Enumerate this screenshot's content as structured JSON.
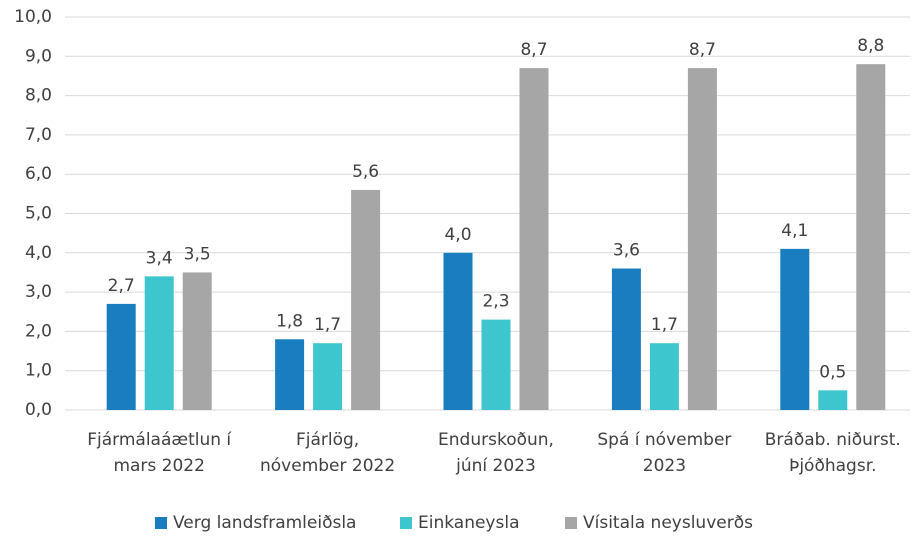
{
  "chart_data": {
    "type": "bar",
    "categories": [
      "Fjármálaáætlun í\nmars 2022",
      "Fjárlög,\nnóvember 2022",
      "Endurskoðun,\njúní 2023",
      "Spá í nóvember\n2023",
      "Bráðab. niðurst.\nÞjóðhagsr."
    ],
    "series": [
      {
        "name": "Verg landsframleiðsla",
        "color": "#1a7dc0",
        "values": [
          2.7,
          1.8,
          4.0,
          3.6,
          4.1
        ],
        "value_labels": [
          "2,7",
          "1,8",
          "4,0",
          "3,6",
          "4,1"
        ]
      },
      {
        "name": "Einkaneysla",
        "color": "#3ec6ce",
        "values": [
          3.4,
          1.7,
          2.3,
          1.7,
          0.5
        ],
        "value_labels": [
          "3,4",
          "1,7",
          "2,3",
          "1,7",
          "0,5"
        ]
      },
      {
        "name": "Vísitala neysluverðs",
        "color": "#a6a6a6",
        "values": [
          3.5,
          5.6,
          8.7,
          8.7,
          8.8
        ],
        "value_labels": [
          "3,5",
          "5,6",
          "8,7",
          "8,7",
          "8,8"
        ]
      }
    ],
    "ylim": [
      0,
      10
    ],
    "yticks": [
      {
        "value": 0,
        "label": "0,0"
      },
      {
        "value": 1,
        "label": "1,0"
      },
      {
        "value": 2,
        "label": "2,0"
      },
      {
        "value": 3,
        "label": "3,0"
      },
      {
        "value": 4,
        "label": "4,0"
      },
      {
        "value": 5,
        "label": "5,0"
      },
      {
        "value": 6,
        "label": "6,0"
      },
      {
        "value": 7,
        "label": "7,0"
      },
      {
        "value": 8,
        "label": "8,0"
      },
      {
        "value": 9,
        "label": "9,0"
      },
      {
        "value": 10,
        "label": "10,0"
      }
    ],
    "grid": true,
    "legend": "bottom"
  }
}
